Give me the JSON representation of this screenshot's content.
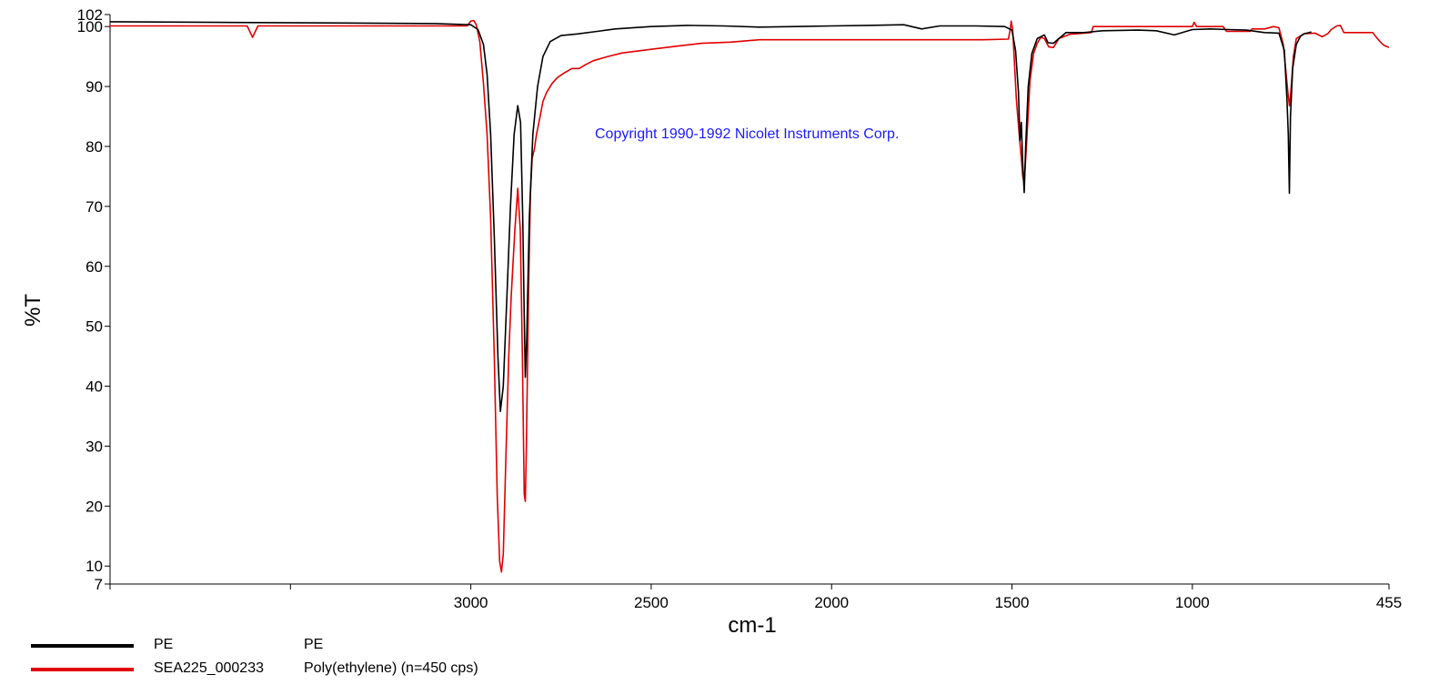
{
  "chart_data": {
    "type": "line",
    "xlabel": "cm-1",
    "ylabel": "%T",
    "xlim": [
      4000,
      455
    ],
    "ylim": [
      7,
      102
    ],
    "x_ticks": [
      3000,
      2500,
      2000,
      1500,
      1000,
      455
    ],
    "x_minor_ticks": [
      4000,
      3500
    ],
    "y_ticks": [
      7,
      10,
      20,
      30,
      40,
      50,
      60,
      70,
      80,
      90,
      100,
      102
    ],
    "grid": false,
    "annotation": "Copyright 1990-1992 Nicolet Instruments Corp.",
    "series": [
      {
        "name": "PE",
        "description": "PE",
        "color": "#000000",
        "points": [
          [
            4000,
            100.8
          ],
          [
            3700,
            100.7
          ],
          [
            3400,
            100.6
          ],
          [
            3100,
            100.5
          ],
          [
            3000,
            100.3
          ],
          [
            2980,
            99.5
          ],
          [
            2965,
            97
          ],
          [
            2955,
            92
          ],
          [
            2945,
            82
          ],
          [
            2935,
            65
          ],
          [
            2925,
            45
          ],
          [
            2918,
            35.8
          ],
          [
            2910,
            40
          ],
          [
            2900,
            55
          ],
          [
            2890,
            70
          ],
          [
            2880,
            82
          ],
          [
            2870,
            86.8
          ],
          [
            2862,
            84
          ],
          [
            2856,
            68
          ],
          [
            2852,
            52
          ],
          [
            2849,
            41.5
          ],
          [
            2845,
            48
          ],
          [
            2838,
            68
          ],
          [
            2828,
            82
          ],
          [
            2815,
            90
          ],
          [
            2800,
            95
          ],
          [
            2780,
            97.5
          ],
          [
            2750,
            98.5
          ],
          [
            2700,
            98.8
          ],
          [
            2650,
            99.2
          ],
          [
            2600,
            99.6
          ],
          [
            2500,
            100.0
          ],
          [
            2400,
            100.2
          ],
          [
            2300,
            100.1
          ],
          [
            2200,
            99.9
          ],
          [
            2100,
            100.0
          ],
          [
            2000,
            100.1
          ],
          [
            1900,
            100.2
          ],
          [
            1800,
            100.3
          ],
          [
            1750,
            99.6
          ],
          [
            1700,
            100.1
          ],
          [
            1600,
            100.1
          ],
          [
            1520,
            100.0
          ],
          [
            1500,
            99.4
          ],
          [
            1490,
            96
          ],
          [
            1482,
            89
          ],
          [
            1478,
            81
          ],
          [
            1474,
            84
          ],
          [
            1470,
            77
          ],
          [
            1466,
            72.3
          ],
          [
            1462,
            80
          ],
          [
            1455,
            90
          ],
          [
            1445,
            95.5
          ],
          [
            1430,
            98.0
          ],
          [
            1410,
            98.6
          ],
          [
            1400,
            97.3
          ],
          [
            1385,
            97.2
          ],
          [
            1370,
            98.0
          ],
          [
            1350,
            99.0
          ],
          [
            1300,
            99.0
          ],
          [
            1250,
            99.3
          ],
          [
            1150,
            99.4
          ],
          [
            1100,
            99.3
          ],
          [
            1050,
            98.6
          ],
          [
            1000,
            99.5
          ],
          [
            950,
            99.6
          ],
          [
            900,
            99.5
          ],
          [
            850,
            99.4
          ],
          [
            800,
            99.0
          ],
          [
            760,
            98.9
          ],
          [
            745,
            96
          ],
          [
            738,
            88
          ],
          [
            734,
            82
          ],
          [
            731,
            72.2
          ],
          [
            728,
            85
          ],
          [
            722,
            93
          ],
          [
            712,
            97
          ],
          [
            700,
            98.4
          ],
          [
            690,
            98.8
          ],
          [
            670,
            99.1
          ]
        ]
      },
      {
        "name": "SEA225_000233",
        "description": "Poly(ethylene) (n=450 cps)",
        "color": "#e00000",
        "points": [
          [
            4000,
            100.1
          ],
          [
            3620,
            100.1
          ],
          [
            3612,
            99.1
          ],
          [
            3605,
            98.2
          ],
          [
            3598,
            99.1
          ],
          [
            3590,
            100.1
          ],
          [
            3010,
            100.1
          ],
          [
            3000,
            100.9
          ],
          [
            2992,
            101.0
          ],
          [
            2985,
            100.3
          ],
          [
            2975,
            97.5
          ],
          [
            2965,
            90.5
          ],
          [
            2955,
            82
          ],
          [
            2945,
            68
          ],
          [
            2935,
            45
          ],
          [
            2927,
            22
          ],
          [
            2920,
            10.8
          ],
          [
            2915,
            9.0
          ],
          [
            2910,
            12
          ],
          [
            2902,
            30
          ],
          [
            2895,
            45
          ],
          [
            2888,
            55
          ],
          [
            2878,
            66
          ],
          [
            2870,
            73.0
          ],
          [
            2863,
            66
          ],
          [
            2857,
            45
          ],
          [
            2852,
            22
          ],
          [
            2849,
            20.8
          ],
          [
            2846,
            30
          ],
          [
            2840,
            56
          ],
          [
            2835,
            72
          ],
          [
            2830,
            78
          ],
          [
            2824,
            79.5
          ],
          [
            2818,
            82
          ],
          [
            2808,
            85
          ],
          [
            2800,
            87.5
          ],
          [
            2790,
            89
          ],
          [
            2775,
            90.5
          ],
          [
            2760,
            91.5
          ],
          [
            2740,
            92.3
          ],
          [
            2720,
            93.0
          ],
          [
            2700,
            93.0
          ],
          [
            2680,
            93.7
          ],
          [
            2660,
            94.3
          ],
          [
            2620,
            95.0
          ],
          [
            2580,
            95.6
          ],
          [
            2500,
            96.2
          ],
          [
            2420,
            96.8
          ],
          [
            2360,
            97.2
          ],
          [
            2280,
            97.4
          ],
          [
            2200,
            97.8
          ],
          [
            2100,
            97.8
          ],
          [
            1800,
            97.8
          ],
          [
            1580,
            97.8
          ],
          [
            1510,
            97.9
          ],
          [
            1505,
            99.5
          ],
          [
            1502,
            100.9
          ],
          [
            1498,
            99.5
          ],
          [
            1494,
            95
          ],
          [
            1488,
            88
          ],
          [
            1480,
            82
          ],
          [
            1474,
            78
          ],
          [
            1470,
            75
          ],
          [
            1466,
            73.8
          ],
          [
            1460,
            80
          ],
          [
            1450,
            91
          ],
          [
            1440,
            95.5
          ],
          [
            1430,
            97.2
          ],
          [
            1420,
            98.2
          ],
          [
            1410,
            98.0
          ],
          [
            1398,
            96.6
          ],
          [
            1385,
            96.5
          ],
          [
            1370,
            98.0
          ],
          [
            1340,
            98.7
          ],
          [
            1280,
            99.0
          ],
          [
            1275,
            100.0
          ],
          [
            1000,
            100.0
          ],
          [
            995,
            100.7
          ],
          [
            988,
            100.0
          ],
          [
            915,
            100.0
          ],
          [
            905,
            99.2
          ],
          [
            840,
            99.2
          ],
          [
            835,
            99.6
          ],
          [
            800,
            99.6
          ],
          [
            775,
            100.0
          ],
          [
            760,
            99.8
          ],
          [
            748,
            97
          ],
          [
            740,
            92
          ],
          [
            735,
            89
          ],
          [
            731,
            86.8
          ],
          [
            727,
            89
          ],
          [
            720,
            95
          ],
          [
            712,
            98.0
          ],
          [
            690,
            98.8
          ],
          [
            660,
            98.9
          ],
          [
            640,
            98.3
          ],
          [
            625,
            98.8
          ],
          [
            615,
            99.5
          ],
          [
            600,
            100.1
          ],
          [
            590,
            100.2
          ],
          [
            580,
            99.0
          ],
          [
            550,
            99.0
          ],
          [
            500,
            99.0
          ],
          [
            490,
            98.2
          ],
          [
            480,
            97.5
          ],
          [
            470,
            96.9
          ],
          [
            455,
            96.5
          ]
        ]
      }
    ]
  }
}
